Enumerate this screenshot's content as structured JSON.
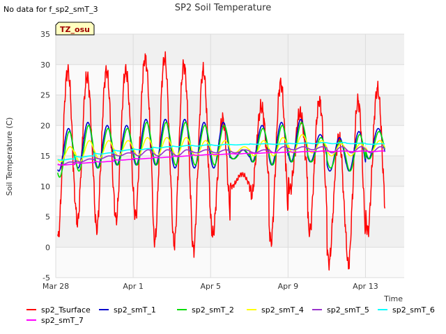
{
  "header": {
    "no_data_note": "No data for f_sp2_smT_3"
  },
  "tz_badge": {
    "label": "TZ_osu",
    "fill": "#ffffc0",
    "text_color": "#a00000"
  },
  "colors": {
    "plot_background": "#f0f0f0",
    "band_light": "#fafafa",
    "grid": "#dcdcdc"
  },
  "chart_data": {
    "type": "line",
    "title": "SP2 Soil Temperature",
    "xlabel": "Time",
    "ylabel": "Soil Temperature (C)",
    "xlim": [
      "2023-03-28",
      "2023-04-15"
    ],
    "ylim": [
      -5,
      35
    ],
    "yticks": [
      -5,
      0,
      5,
      10,
      15,
      20,
      25,
      30,
      35
    ],
    "xticks": [
      {
        "label": "Mar 28",
        "date": "2023-03-28"
      },
      {
        "label": "Apr 1",
        "date": "2023-04-01"
      },
      {
        "label": "Apr 5",
        "date": "2023-04-05"
      },
      {
        "label": "Apr 9",
        "date": "2023-04-09"
      },
      {
        "label": "Apr 13",
        "date": "2023-04-13"
      }
    ],
    "grid": true,
    "legend_position": "bottom",
    "series": [
      {
        "name": "sp2_Tsurface",
        "color": "#ff0000",
        "daily_max": [
          29,
          28,
          29,
          29,
          31,
          31,
          30,
          29,
          21,
          12,
          23,
          27,
          22,
          24,
          18,
          24,
          26
        ],
        "daily_min": [
          1.5,
          4,
          3,
          4.5,
          5,
          1,
          0.5,
          -0.5,
          2,
          10,
          8.5,
          0.8,
          9.5,
          2.5,
          -2.5,
          -3,
          2.5
        ]
      },
      {
        "name": "sp2_smT_1",
        "color": "#0000cc",
        "daily_max": [
          19.5,
          20.5,
          20,
          20,
          21,
          21,
          21,
          20.5,
          20.5,
          16,
          20,
          20.5,
          21,
          18.5,
          18,
          19,
          19.5
        ],
        "daily_min": [
          12.5,
          13,
          13,
          13.5,
          13.5,
          13.5,
          13,
          13,
          13,
          14.5,
          14,
          13.5,
          14,
          14,
          12.5,
          12.5,
          14.5
        ]
      },
      {
        "name": "sp2_smT_2",
        "color": "#00dd00",
        "daily_max": [
          19,
          20,
          19.5,
          19.5,
          20.5,
          20.5,
          20.5,
          20,
          20,
          16,
          19.5,
          20,
          20.5,
          18,
          17.5,
          18.5,
          19
        ],
        "daily_min": [
          11.5,
          12.5,
          13,
          13.5,
          13.5,
          13.5,
          13.5,
          13.5,
          13.5,
          14.5,
          14,
          13.5,
          14,
          14,
          13,
          12.5,
          14.5
        ]
      },
      {
        "name": "sp2_smT_4",
        "color": "#ffff00",
        "daily_max": [
          16.5,
          17.5,
          17.5,
          17.5,
          18,
          18,
          18,
          17.5,
          17.5,
          16.5,
          17.5,
          18,
          18.5,
          17.5,
          17,
          17,
          17.5
        ],
        "daily_min": [
          14,
          14,
          14.5,
          15,
          15,
          15,
          15,
          15,
          15,
          15.5,
          15,
          15,
          15.5,
          15.5,
          15,
          15,
          15.5
        ]
      },
      {
        "name": "sp2_smT_5",
        "color": "#9933cc",
        "daily_max": [
          14,
          14.5,
          15,
          15.5,
          16,
          16,
          16,
          16,
          16,
          16,
          16,
          16.5,
          16.5,
          16.5,
          16.5,
          16.5,
          16.5
        ],
        "daily_min": [
          13.5,
          14,
          14.5,
          15,
          15,
          15,
          15,
          15.5,
          15.5,
          15.5,
          15.5,
          15.5,
          16,
          16,
          15.5,
          15.5,
          15.5
        ]
      },
      {
        "name": "sp2_smT_6",
        "color": "#00ffff",
        "daily_max": [
          14.5,
          15,
          15.5,
          16,
          16.2,
          16.5,
          16.7,
          16.8,
          16.9,
          16.9,
          17,
          17,
          17.1,
          17.2,
          17.2,
          17.1,
          17
        ],
        "daily_min": [
          14.3,
          14.8,
          15.3,
          15.8,
          16,
          16.3,
          16.5,
          16.6,
          16.7,
          16.8,
          16.9,
          16.9,
          17,
          17,
          17,
          17,
          16.9
        ]
      },
      {
        "name": "sp2_smT_7",
        "color": "#ff00ff",
        "daily_max": [
          13.6,
          13.9,
          14.1,
          14.4,
          14.6,
          14.8,
          15,
          15.2,
          15.3,
          15.4,
          15.5,
          15.6,
          15.7,
          15.8,
          15.8,
          15.8,
          15.8
        ],
        "daily_min": [
          13.5,
          13.8,
          14,
          14.3,
          14.5,
          14.7,
          14.9,
          15.1,
          15.2,
          15.3,
          15.4,
          15.5,
          15.6,
          15.7,
          15.7,
          15.7,
          15.7
        ]
      }
    ]
  }
}
